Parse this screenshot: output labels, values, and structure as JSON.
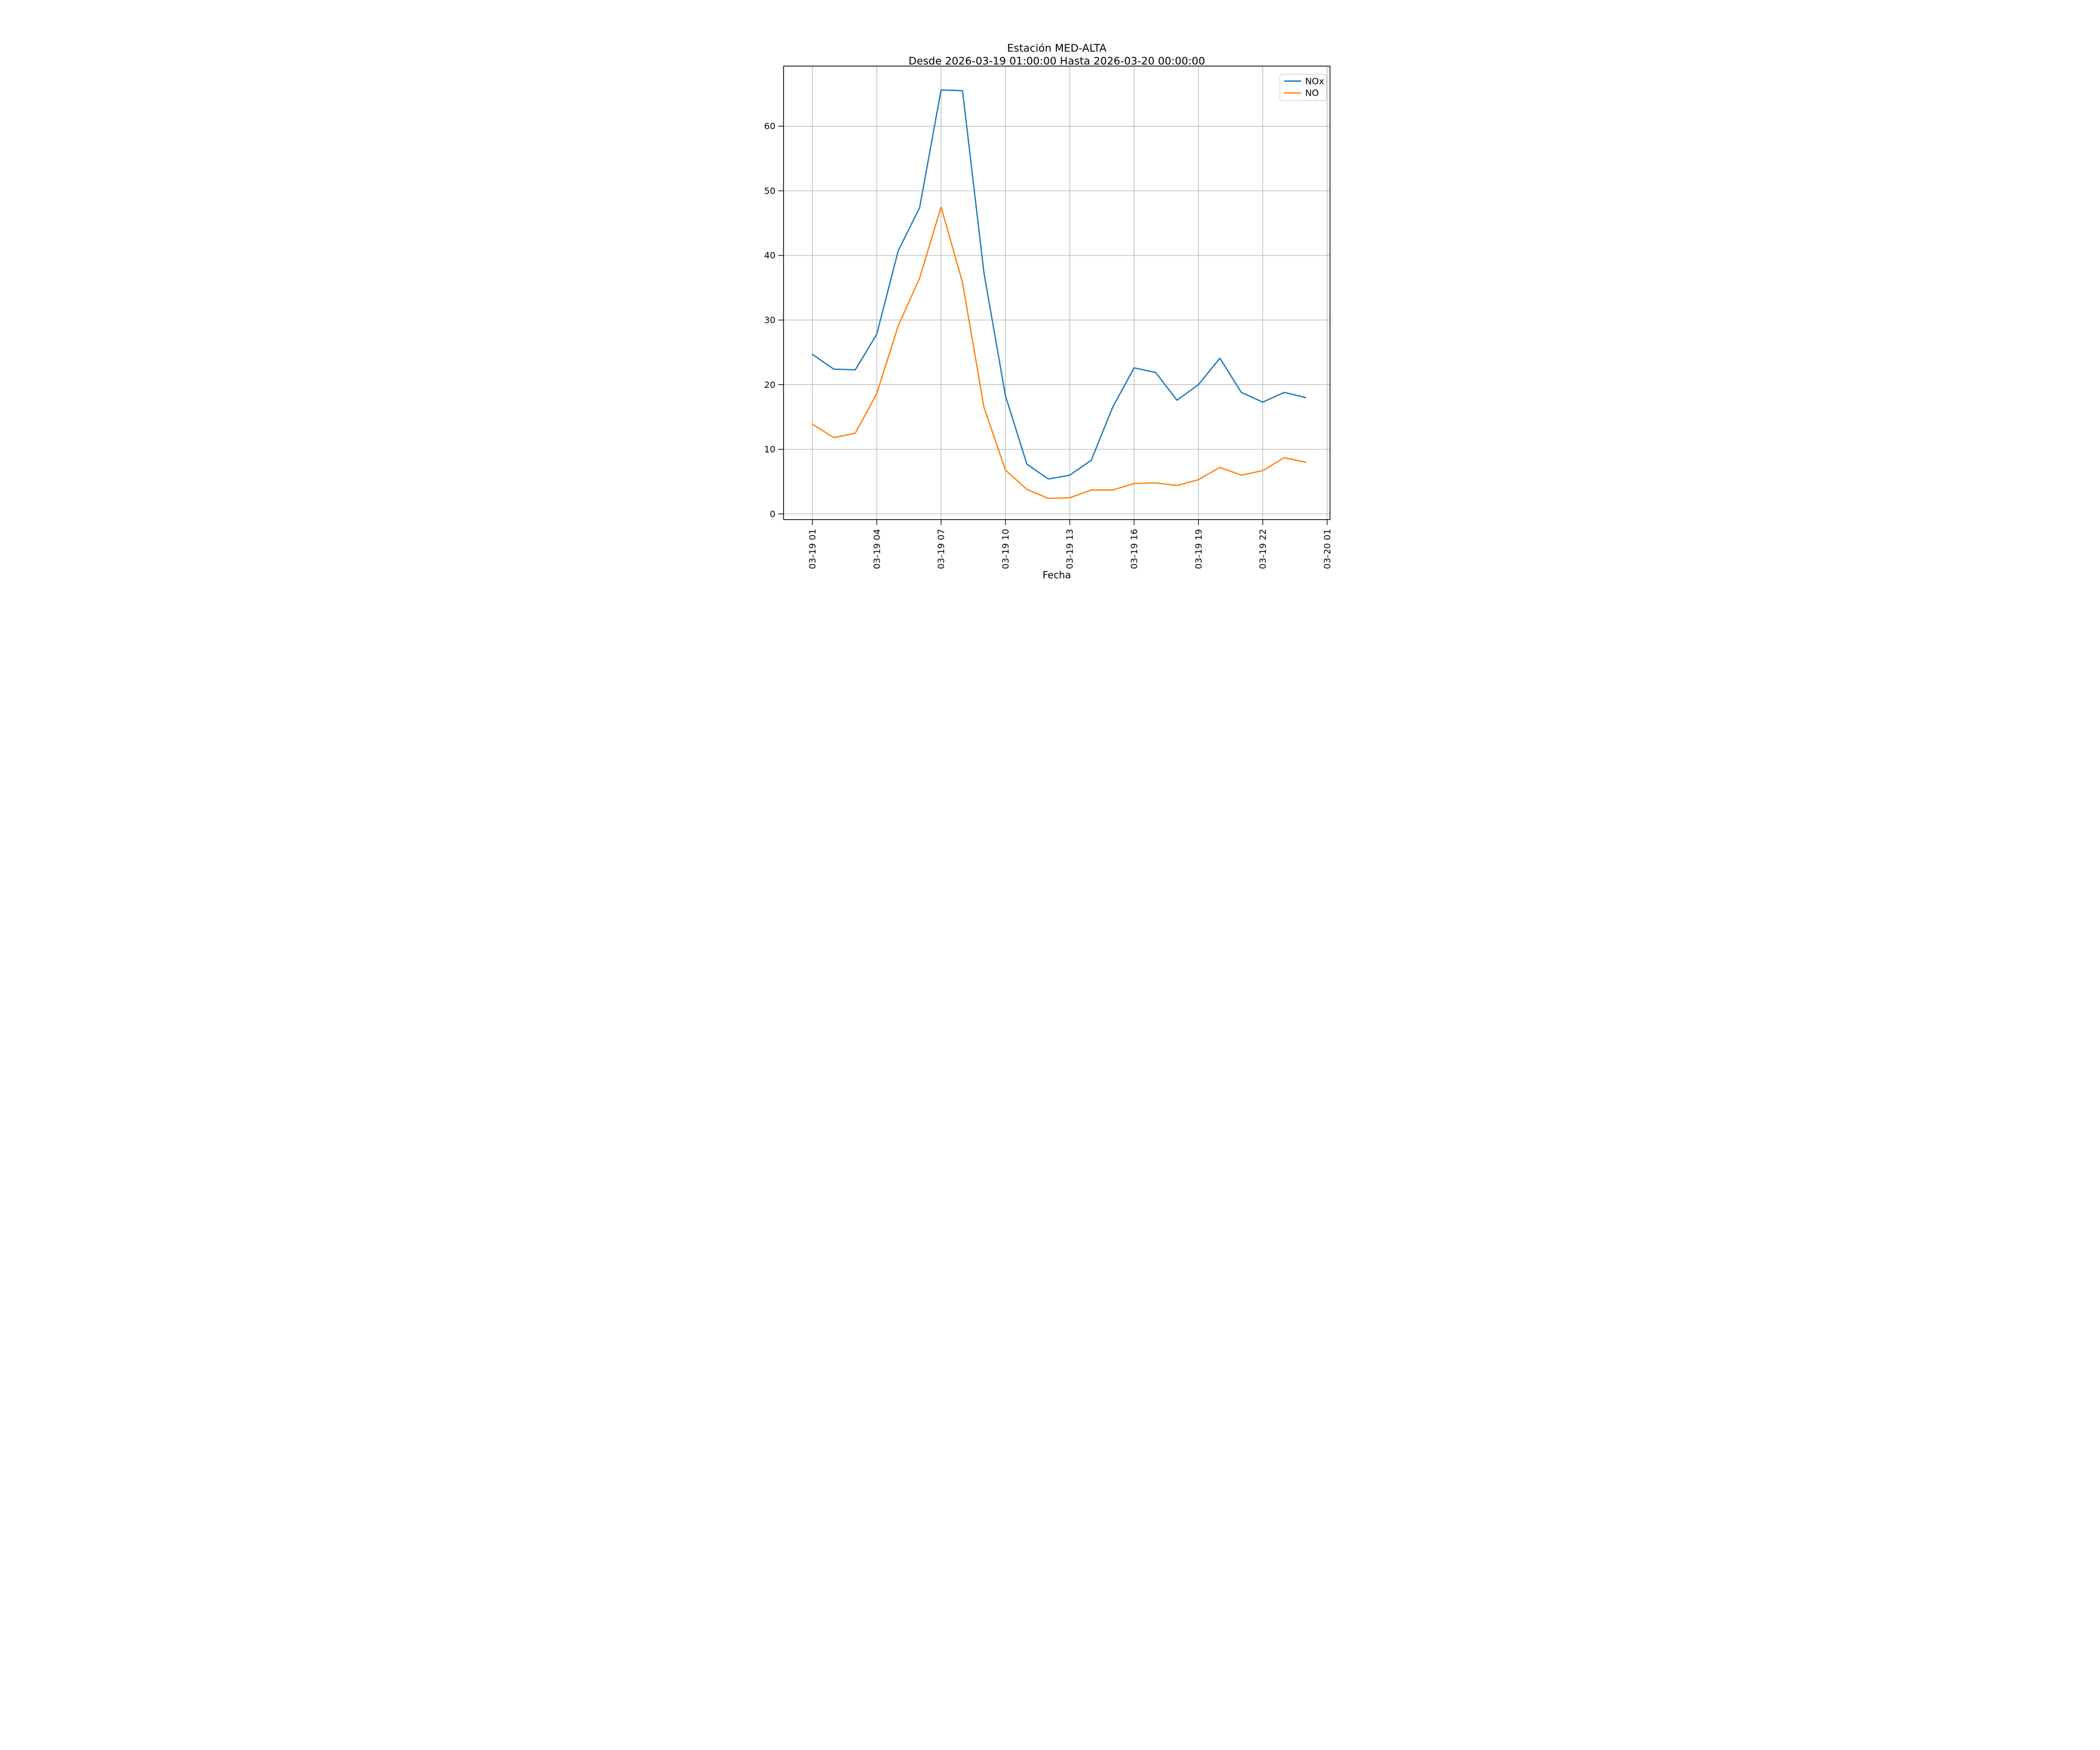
{
  "chart_data": {
    "type": "line",
    "title": "Estación MED-ALTA",
    "subtitle": "Desde 2026-03-19 01:00:00 Hasta 2026-03-20 00:00:00",
    "xlabel": "Fecha",
    "ylabel": "",
    "x": [
      "2026-03-19 01:00",
      "2026-03-19 02:00",
      "2026-03-19 03:00",
      "2026-03-19 04:00",
      "2026-03-19 05:00",
      "2026-03-19 06:00",
      "2026-03-19 07:00",
      "2026-03-19 08:00",
      "2026-03-19 09:00",
      "2026-03-19 10:00",
      "2026-03-19 11:00",
      "2026-03-19 12:00",
      "2026-03-19 13:00",
      "2026-03-19 14:00",
      "2026-03-19 15:00",
      "2026-03-19 16:00",
      "2026-03-19 17:00",
      "2026-03-19 18:00",
      "2026-03-19 19:00",
      "2026-03-19 20:00",
      "2026-03-19 21:00",
      "2026-03-19 22:00",
      "2026-03-19 23:00",
      "2026-03-20 00:00"
    ],
    "series": [
      {
        "name": "NOx",
        "color": "#1f77b4",
        "values": [
          24.7,
          22.4,
          22.3,
          27.8,
          40.7,
          47.4,
          65.6,
          65.5,
          37.3,
          18.3,
          7.7,
          5.4,
          6.0,
          8.3,
          16.5,
          22.6,
          21.9,
          17.6,
          20.0,
          24.1,
          18.8,
          17.3,
          18.8,
          18.0
        ]
      },
      {
        "name": "NO",
        "color": "#ff7f0e",
        "values": [
          13.9,
          11.8,
          12.5,
          18.6,
          29.1,
          36.5,
          47.5,
          35.8,
          16.5,
          6.8,
          3.8,
          2.4,
          2.5,
          3.7,
          3.7,
          4.7,
          4.8,
          4.4,
          5.3,
          7.2,
          6.0,
          6.7,
          8.7,
          8.0
        ]
      }
    ],
    "x_tick_labels": [
      "03-19 01",
      "03-19 04",
      "03-19 07",
      "03-19 10",
      "03-19 13",
      "03-19 16",
      "03-19 19",
      "03-19 22",
      "03-20 01"
    ],
    "y_ticks": [
      0,
      10,
      20,
      30,
      40,
      50,
      60
    ],
    "ylim": [
      -0.9,
      69.3
    ],
    "grid": true,
    "grid_color": "#b0b0b0",
    "background": "#ffffff",
    "legend_position": "upper right",
    "legend_entries": [
      "NOx",
      "NO"
    ]
  }
}
